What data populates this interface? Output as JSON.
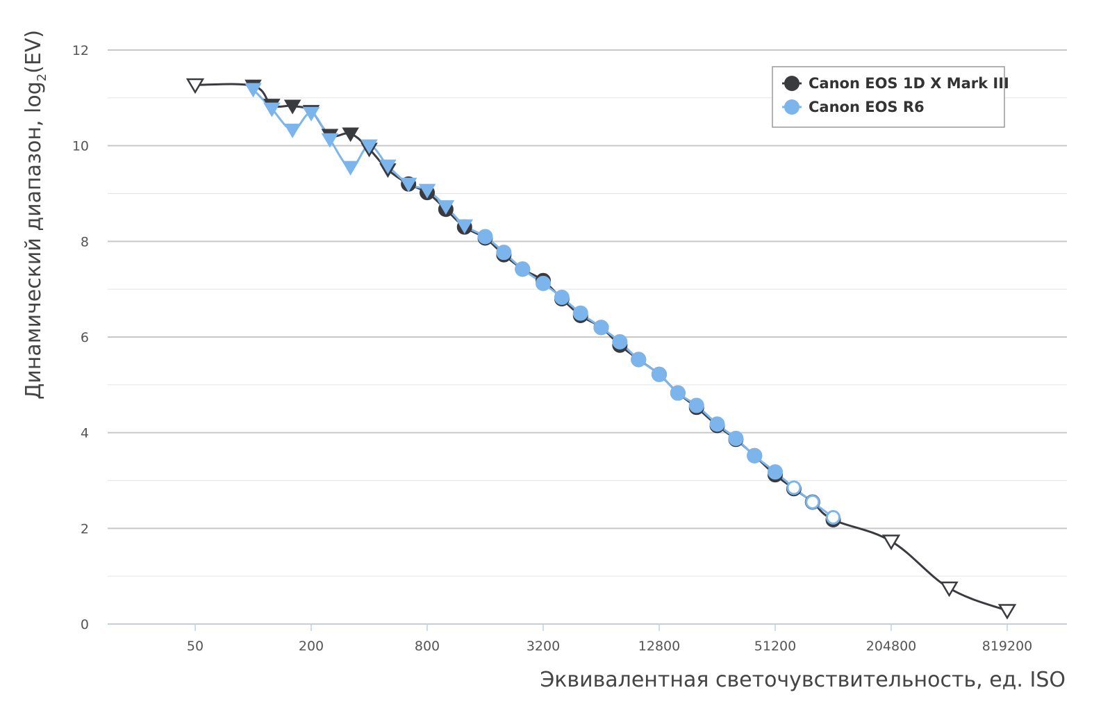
{
  "chart_data": {
    "type": "line",
    "title": "",
    "xlabel": "Эквивалентная светочувствительность, ед. ISO",
    "ylabel_main": "Динамический диапазон, log",
    "ylabel_sub": "2",
    "ylabel_tail": "(EV)",
    "x_scale": "log2",
    "xlim": [
      25,
      1300000
    ],
    "ylim": [
      0,
      12
    ],
    "x_ticks": [
      "50",
      "200",
      "800",
      "3200",
      "12800",
      "51200",
      "204800",
      "819200"
    ],
    "x_tick_values": [
      50,
      200,
      800,
      3200,
      12800,
      51200,
      204800,
      819200
    ],
    "y_ticks": [
      "0",
      "2",
      "4",
      "6",
      "8",
      "10",
      "12"
    ],
    "y_tick_values": [
      0,
      2,
      4,
      6,
      8,
      10,
      12
    ],
    "grid": true,
    "legend_position": "top-right",
    "series": [
      {
        "name": "Canon EOS 1D X Mark III",
        "color": "#3a3b3f",
        "points": [
          {
            "x": 50,
            "y": 11.27,
            "marker": "triangle-open"
          },
          {
            "x": 100,
            "y": 11.25,
            "marker": "triangle"
          },
          {
            "x": 125,
            "y": 10.85,
            "marker": "triangle"
          },
          {
            "x": 160,
            "y": 10.83,
            "marker": "triangle"
          },
          {
            "x": 200,
            "y": 10.72,
            "marker": "triangle"
          },
          {
            "x": 250,
            "y": 10.22,
            "marker": "triangle"
          },
          {
            "x": 320,
            "y": 10.25,
            "marker": "triangle"
          },
          {
            "x": 400,
            "y": 9.93,
            "marker": "triangle"
          },
          {
            "x": 500,
            "y": 9.5,
            "marker": "triangle"
          },
          {
            "x": 640,
            "y": 9.2,
            "marker": "circle"
          },
          {
            "x": 800,
            "y": 9.02,
            "marker": "circle"
          },
          {
            "x": 1000,
            "y": 8.67,
            "marker": "circle"
          },
          {
            "x": 1250,
            "y": 8.3,
            "marker": "circle"
          },
          {
            "x": 1600,
            "y": 8.07,
            "marker": "circle"
          },
          {
            "x": 2000,
            "y": 7.72,
            "marker": "circle"
          },
          {
            "x": 2500,
            "y": 7.42,
            "marker": "circle"
          },
          {
            "x": 3200,
            "y": 7.18,
            "marker": "circle"
          },
          {
            "x": 4000,
            "y": 6.8,
            "marker": "circle"
          },
          {
            "x": 5000,
            "y": 6.45,
            "marker": "circle"
          },
          {
            "x": 6400,
            "y": 6.2,
            "marker": "circle"
          },
          {
            "x": 8000,
            "y": 5.83,
            "marker": "circle"
          },
          {
            "x": 10000,
            "y": 5.53,
            "marker": "circle"
          },
          {
            "x": 12800,
            "y": 5.22,
            "marker": "circle"
          },
          {
            "x": 16000,
            "y": 4.83,
            "marker": "circle"
          },
          {
            "x": 20000,
            "y": 4.53,
            "marker": "circle"
          },
          {
            "x": 25600,
            "y": 4.15,
            "marker": "circle"
          },
          {
            "x": 32000,
            "y": 3.86,
            "marker": "circle"
          },
          {
            "x": 40000,
            "y": 3.52,
            "marker": "circle"
          },
          {
            "x": 51200,
            "y": 3.12,
            "marker": "circle"
          },
          {
            "x": 64000,
            "y": 2.83,
            "marker": "circle"
          },
          {
            "x": 80000,
            "y": 2.55,
            "marker": "circle"
          },
          {
            "x": 102400,
            "y": 2.18,
            "marker": "circle"
          },
          {
            "x": 204800,
            "y": 1.73,
            "marker": "triangle-open"
          },
          {
            "x": 409600,
            "y": 0.75,
            "marker": "triangle-open"
          },
          {
            "x": 819200,
            "y": 0.28,
            "marker": "triangle-open"
          }
        ]
      },
      {
        "name": "Canon EOS R6",
        "color": "#7cb5ec",
        "points": [
          {
            "x": 100,
            "y": 11.18,
            "marker": "triangle"
          },
          {
            "x": 125,
            "y": 10.77,
            "marker": "triangle"
          },
          {
            "x": 160,
            "y": 10.33,
            "marker": "triangle"
          },
          {
            "x": 200,
            "y": 10.68,
            "marker": "triangle"
          },
          {
            "x": 250,
            "y": 10.13,
            "marker": "triangle"
          },
          {
            "x": 320,
            "y": 9.55,
            "marker": "triangle"
          },
          {
            "x": 400,
            "y": 10.0,
            "marker": "triangle"
          },
          {
            "x": 500,
            "y": 9.58,
            "marker": "triangle"
          },
          {
            "x": 640,
            "y": 9.2,
            "marker": "triangle"
          },
          {
            "x": 800,
            "y": 9.07,
            "marker": "triangle"
          },
          {
            "x": 1000,
            "y": 8.73,
            "marker": "triangle"
          },
          {
            "x": 1250,
            "y": 8.33,
            "marker": "triangle"
          },
          {
            "x": 1600,
            "y": 8.1,
            "marker": "circle"
          },
          {
            "x": 2000,
            "y": 7.77,
            "marker": "circle"
          },
          {
            "x": 2500,
            "y": 7.42,
            "marker": "circle"
          },
          {
            "x": 3200,
            "y": 7.12,
            "marker": "circle"
          },
          {
            "x": 4000,
            "y": 6.83,
            "marker": "circle"
          },
          {
            "x": 5000,
            "y": 6.5,
            "marker": "circle"
          },
          {
            "x": 6400,
            "y": 6.2,
            "marker": "circle"
          },
          {
            "x": 8000,
            "y": 5.9,
            "marker": "circle"
          },
          {
            "x": 10000,
            "y": 5.53,
            "marker": "circle"
          },
          {
            "x": 12800,
            "y": 5.22,
            "marker": "circle"
          },
          {
            "x": 16000,
            "y": 4.83,
            "marker": "circle"
          },
          {
            "x": 20000,
            "y": 4.57,
            "marker": "circle"
          },
          {
            "x": 25600,
            "y": 4.18,
            "marker": "circle"
          },
          {
            "x": 32000,
            "y": 3.88,
            "marker": "circle"
          },
          {
            "x": 40000,
            "y": 3.52,
            "marker": "circle"
          },
          {
            "x": 51200,
            "y": 3.18,
            "marker": "circle"
          },
          {
            "x": 64000,
            "y": 2.85,
            "marker": "circle-open"
          },
          {
            "x": 80000,
            "y": 2.55,
            "marker": "circle-open"
          },
          {
            "x": 102400,
            "y": 2.23,
            "marker": "circle-open"
          }
        ]
      }
    ]
  }
}
